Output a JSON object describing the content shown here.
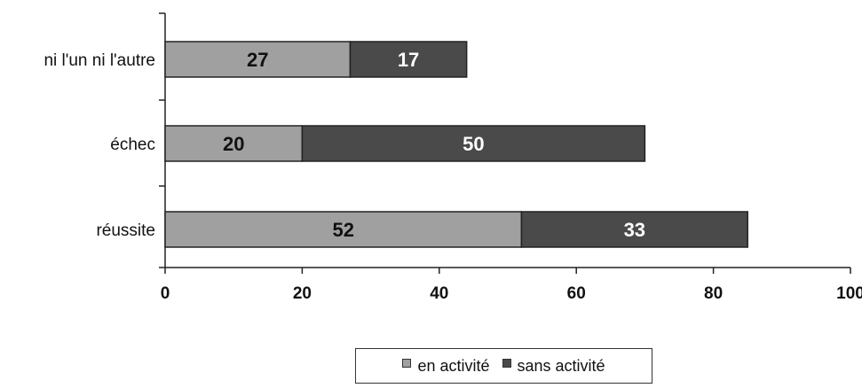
{
  "chart_data": {
    "type": "bar",
    "orientation": "horizontal",
    "stacked": true,
    "categories": [
      "réussite",
      "échec",
      "ni l'un ni l'autre"
    ],
    "series": [
      {
        "name": "en activité",
        "values": [
          52,
          20,
          27
        ],
        "color": "#a0a0a0"
      },
      {
        "name": "sans activité",
        "values": [
          33,
          50,
          17
        ],
        "color": "#4a4a4a"
      }
    ],
    "xlim": [
      0,
      100
    ],
    "xticks": [
      0,
      20,
      40,
      60,
      80,
      100
    ],
    "grid": false,
    "legend_position": "bottom"
  }
}
